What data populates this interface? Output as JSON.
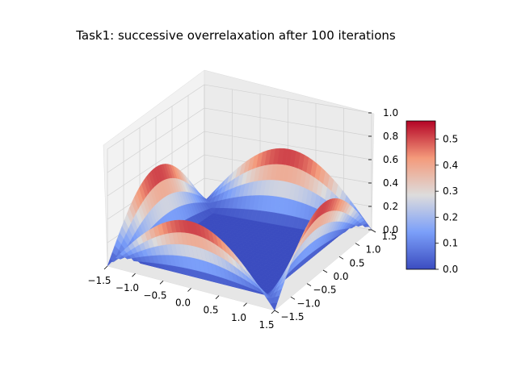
{
  "chart_data": {
    "type": "surface",
    "title": "Task1: successive overrelaxation after 100 iterations",
    "projection": "3d",
    "colormap": "coolwarm",
    "x_range": [
      -1.5,
      1.5
    ],
    "y_range": [
      -1.5,
      1.5
    ],
    "z_range": [
      0.0,
      1.0
    ],
    "x_ticks": [
      "−1.5",
      "−1.0",
      "−0.5",
      "0.0",
      "0.5",
      "1.0",
      "1.5"
    ],
    "y_ticks": [
      "−1.5",
      "−1.0",
      "−0.5",
      "0.0",
      "0.5",
      "1.0",
      "1.5"
    ],
    "z_ticks": [
      "0.0",
      "0.2",
      "0.4",
      "0.6",
      "0.8",
      "1.0"
    ],
    "surface_description_values": {
      "boundary_peak_value": 0.57,
      "interior_value": 0.0,
      "boundary_shape": "half-sine arch along each of the four edges of the square domain"
    },
    "colorbar": {
      "range": [
        0.0,
        0.57
      ],
      "ticks": [
        "0.0",
        "0.1",
        "0.2",
        "0.3",
        "0.4",
        "0.5"
      ]
    },
    "grid": true
  }
}
